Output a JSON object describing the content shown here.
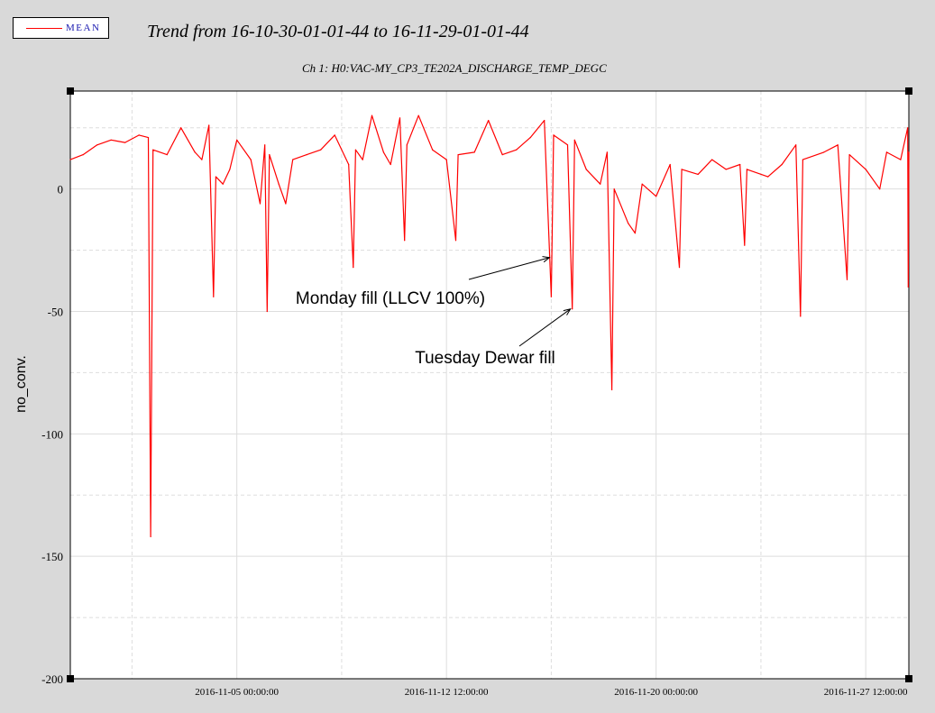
{
  "legend": {
    "label": "MEAN",
    "color": "#ff0000"
  },
  "title": "Trend from 16-10-30-01-01-44 to 16-11-29-01-01-44",
  "channel_title": "Ch 1: H0:VAC-MY_CP3_TE202A_DISCHARGE_TEMP_DEGC",
  "chart_data": {
    "type": "line",
    "title": "Trend from 16-10-30-01-01-44 to 16-11-29-01-01-44",
    "subtitle": "Ch 1: H0:VAC-MY_CP3_TE202A_DISCHARGE_TEMP_DEGC",
    "xlabel": "",
    "ylabel": "no_conv.",
    "x_start": "2016-10-30 01:01:44",
    "x_end": "2016-11-29 01:01:44",
    "ylim": [
      -200,
      40
    ],
    "y_ticks": [
      0,
      -50,
      -100,
      -150,
      -200
    ],
    "y_tick_labels": [
      "0",
      "-50",
      "-100",
      "-150",
      "-200"
    ],
    "x_ticks": [
      "2016-11-05 00:00:00",
      "2016-11-12 12:00:00",
      "2016-11-20 00:00:00",
      "2016-11-27 12:00:00"
    ],
    "x_tick_labels": [
      "2016-11-05 00:00:00",
      "2016-11-12 12:00:00",
      "2016-11-20 00:00:00",
      "2016-11-27 12:00:00"
    ],
    "grid": true,
    "legend_position": "top-left",
    "series": [
      {
        "name": "MEAN",
        "color": "#ff0000",
        "points": [
          [
            "2016-10-30 01:00",
            12
          ],
          [
            "2016-10-30 12:00",
            14
          ],
          [
            "2016-10-31 00:00",
            18
          ],
          [
            "2016-10-31 12:00",
            20
          ],
          [
            "2016-11-01 00:00",
            19
          ],
          [
            "2016-11-01 12:00",
            22
          ],
          [
            "2016-11-01 20:00",
            21
          ],
          [
            "2016-11-01 22:00",
            -142
          ],
          [
            "2016-11-02 00:00",
            16
          ],
          [
            "2016-11-02 12:00",
            14
          ],
          [
            "2016-11-03 00:00",
            25
          ],
          [
            "2016-11-03 12:00",
            15
          ],
          [
            "2016-11-03 18:00",
            12
          ],
          [
            "2016-11-04 00:00",
            26
          ],
          [
            "2016-11-04 04:00",
            -44
          ],
          [
            "2016-11-04 06:00",
            5
          ],
          [
            "2016-11-04 12:00",
            2
          ],
          [
            "2016-11-04 18:00",
            8
          ],
          [
            "2016-11-05 00:00",
            20
          ],
          [
            "2016-11-05 12:00",
            12
          ],
          [
            "2016-11-05 20:00",
            -6
          ],
          [
            "2016-11-06 00:00",
            18
          ],
          [
            "2016-11-06 02:00",
            -50
          ],
          [
            "2016-11-06 04:00",
            14
          ],
          [
            "2016-11-06 12:00",
            2
          ],
          [
            "2016-11-06 18:00",
            -6
          ],
          [
            "2016-11-07 00:00",
            12
          ],
          [
            "2016-11-07 12:00",
            14
          ],
          [
            "2016-11-08 00:00",
            16
          ],
          [
            "2016-11-08 12:00",
            22
          ],
          [
            "2016-11-09 00:00",
            10
          ],
          [
            "2016-11-09 04:00",
            -32
          ],
          [
            "2016-11-09 06:00",
            16
          ],
          [
            "2016-11-09 12:00",
            12
          ],
          [
            "2016-11-09 20:00",
            30
          ],
          [
            "2016-11-10 06:00",
            15
          ],
          [
            "2016-11-10 12:00",
            10
          ],
          [
            "2016-11-10 20:00",
            29
          ],
          [
            "2016-11-11 00:00",
            -21
          ],
          [
            "2016-11-11 02:00",
            18
          ],
          [
            "2016-11-11 12:00",
            30
          ],
          [
            "2016-11-12 00:00",
            16
          ],
          [
            "2016-11-12 12:00",
            12
          ],
          [
            "2016-11-12 20:00",
            -21
          ],
          [
            "2016-11-12 22:00",
            14
          ],
          [
            "2016-11-13 12:00",
            15
          ],
          [
            "2016-11-14 00:00",
            28
          ],
          [
            "2016-11-14 12:00",
            14
          ],
          [
            "2016-11-15 00:00",
            16
          ],
          [
            "2016-11-15 12:00",
            21
          ],
          [
            "2016-11-16 00:00",
            28
          ],
          [
            "2016-11-16 06:00",
            -44
          ],
          [
            "2016-11-16 08:00",
            22
          ],
          [
            "2016-11-16 20:00",
            18
          ],
          [
            "2016-11-17 00:00",
            -49
          ],
          [
            "2016-11-17 02:00",
            20
          ],
          [
            "2016-11-17 12:00",
            8
          ],
          [
            "2016-11-18 00:00",
            2
          ],
          [
            "2016-11-18 06:00",
            15
          ],
          [
            "2016-11-18 10:00",
            -82
          ],
          [
            "2016-11-18 12:00",
            0
          ],
          [
            "2016-11-19 00:00",
            -14
          ],
          [
            "2016-11-19 06:00",
            -18
          ],
          [
            "2016-11-19 12:00",
            2
          ],
          [
            "2016-11-20 00:00",
            -3
          ],
          [
            "2016-11-20 12:00",
            10
          ],
          [
            "2016-11-20 20:00",
            -32
          ],
          [
            "2016-11-20 22:00",
            8
          ],
          [
            "2016-11-21 12:00",
            6
          ],
          [
            "2016-11-22 00:00",
            12
          ],
          [
            "2016-11-22 12:00",
            8
          ],
          [
            "2016-11-23 00:00",
            10
          ],
          [
            "2016-11-23 04:00",
            -23
          ],
          [
            "2016-11-23 06:00",
            8
          ],
          [
            "2016-11-24 00:00",
            5
          ],
          [
            "2016-11-24 12:00",
            10
          ],
          [
            "2016-11-25 00:00",
            18
          ],
          [
            "2016-11-25 04:00",
            -52
          ],
          [
            "2016-11-25 06:00",
            12
          ],
          [
            "2016-11-26 00:00",
            15
          ],
          [
            "2016-11-26 12:00",
            18
          ],
          [
            "2016-11-26 20:00",
            -37
          ],
          [
            "2016-11-26 22:00",
            14
          ],
          [
            "2016-11-27 12:00",
            8
          ],
          [
            "2016-11-28 00:00",
            0
          ],
          [
            "2016-11-28 06:00",
            15
          ],
          [
            "2016-11-28 18:00",
            12
          ],
          [
            "2016-11-29 00:00",
            25
          ],
          [
            "2016-11-29 00:30",
            -40
          ],
          [
            "2016-11-29 01:00",
            15
          ]
        ]
      }
    ],
    "annotations": [
      {
        "text": "Monday fill (LLCV 100%)",
        "x": "2016-11-16 06:00",
        "y": -28
      },
      {
        "text": "Tuesday Dewar fill",
        "x": "2016-11-17 00:00",
        "y": -49
      }
    ]
  }
}
